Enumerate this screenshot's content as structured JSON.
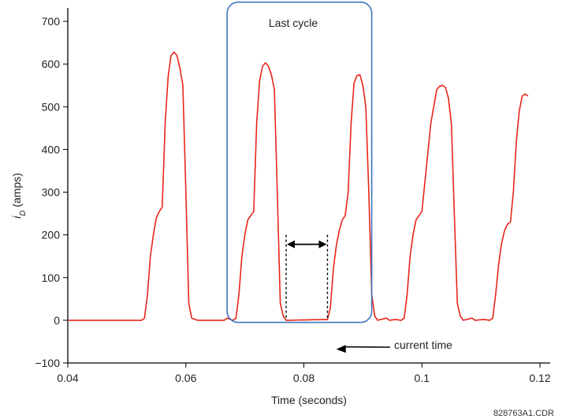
{
  "chart_data": {
    "type": "line",
    "xlabel": "Time (seconds)",
    "ylabel_italic": "i",
    "ylabel_sub": "D",
    "ylabel_rest": " (amps)",
    "xlim": [
      0.04,
      0.12
    ],
    "ylim": [
      -100,
      750
    ],
    "x_ticks": [
      "0.04",
      "0.06",
      "0.08",
      "0.1",
      "0.12"
    ],
    "x_tick_values": [
      0.04,
      0.06,
      0.08,
      0.1,
      0.12
    ],
    "y_ticks": [
      "700",
      "600",
      "500",
      "400",
      "300",
      "200",
      "100",
      "0",
      "−100"
    ],
    "y_tick_values": [
      700,
      600,
      500,
      400,
      300,
      200,
      100,
      0,
      -100
    ],
    "grid": false,
    "series": [
      {
        "color": "#e8251b",
        "points": [
          [
            0.04,
            0
          ],
          [
            0.0525,
            0
          ],
          [
            0.053,
            5
          ],
          [
            0.0535,
            60
          ],
          [
            0.054,
            150
          ],
          [
            0.0545,
            200
          ],
          [
            0.055,
            240
          ],
          [
            0.0555,
            255
          ],
          [
            0.056,
            265
          ],
          [
            0.0565,
            460
          ],
          [
            0.057,
            570
          ],
          [
            0.0575,
            620
          ],
          [
            0.058,
            628
          ],
          [
            0.0585,
            620
          ],
          [
            0.059,
            590
          ],
          [
            0.0595,
            550
          ],
          [
            0.06,
            300
          ],
          [
            0.0605,
            40
          ],
          [
            0.061,
            5
          ],
          [
            0.062,
            0
          ],
          [
            0.0665,
            0
          ],
          [
            0.067,
            5
          ],
          [
            0.0675,
            2
          ],
          [
            0.068,
            0
          ],
          [
            0.0685,
            5
          ],
          [
            0.069,
            60
          ],
          [
            0.0695,
            150
          ],
          [
            0.07,
            200
          ],
          [
            0.0705,
            235
          ],
          [
            0.071,
            245
          ],
          [
            0.0715,
            255
          ],
          [
            0.072,
            460
          ],
          [
            0.0725,
            560
          ],
          [
            0.073,
            595
          ],
          [
            0.0735,
            603
          ],
          [
            0.074,
            595
          ],
          [
            0.0745,
            575
          ],
          [
            0.075,
            540
          ],
          [
            0.0755,
            300
          ],
          [
            0.076,
            40
          ],
          [
            0.0765,
            10
          ],
          [
            0.077,
            0
          ],
          [
            0.084,
            2
          ],
          [
            0.0845,
            30
          ],
          [
            0.085,
            120
          ],
          [
            0.0855,
            175
          ],
          [
            0.086,
            210
          ],
          [
            0.0865,
            235
          ],
          [
            0.087,
            245
          ],
          [
            0.0875,
            300
          ],
          [
            0.088,
            460
          ],
          [
            0.0885,
            555
          ],
          [
            0.089,
            573
          ],
          [
            0.0895,
            575
          ],
          [
            0.09,
            550
          ],
          [
            0.0905,
            500
          ],
          [
            0.091,
            300
          ],
          [
            0.0915,
            60
          ],
          [
            0.092,
            10
          ],
          [
            0.0925,
            0
          ],
          [
            0.094,
            5
          ],
          [
            0.0945,
            0
          ],
          [
            0.0955,
            2
          ],
          [
            0.0965,
            0
          ],
          [
            0.097,
            5
          ],
          [
            0.0975,
            60
          ],
          [
            0.098,
            150
          ],
          [
            0.0985,
            200
          ],
          [
            0.099,
            235
          ],
          [
            0.0995,
            245
          ],
          [
            0.1,
            255
          ],
          [
            0.1015,
            460
          ],
          [
            0.1025,
            540
          ],
          [
            0.103,
            548
          ],
          [
            0.1035,
            550
          ],
          [
            0.104,
            545
          ],
          [
            0.1045,
            520
          ],
          [
            0.105,
            460
          ],
          [
            0.1055,
            250
          ],
          [
            0.106,
            40
          ],
          [
            0.1065,
            10
          ],
          [
            0.107,
            0
          ],
          [
            0.1085,
            5
          ],
          [
            0.109,
            0
          ],
          [
            0.1105,
            2
          ],
          [
            0.1115,
            0
          ],
          [
            0.112,
            5
          ],
          [
            0.1125,
            60
          ],
          [
            0.113,
            130
          ],
          [
            0.1135,
            180
          ],
          [
            0.114,
            210
          ],
          [
            0.1145,
            225
          ],
          [
            0.115,
            230
          ],
          [
            0.1155,
            300
          ],
          [
            0.116,
            420
          ],
          [
            0.1165,
            490
          ],
          [
            0.117,
            525
          ],
          [
            0.1175,
            530
          ],
          [
            0.118,
            525
          ]
        ]
      }
    ],
    "annotations": {
      "box_label": "Last cycle",
      "box_x": [
        0.067,
        0.0915
      ],
      "box_y": [
        -5,
        745
      ],
      "interval_x": [
        0.077,
        0.084
      ],
      "interval_y_top": 200,
      "arrow_label": "current time",
      "arrow_target": [
        0.0855,
        -90
      ],
      "code": "828763A1.CDR"
    },
    "box_color": "#3d76bf",
    "line_color": "#e8251b"
  }
}
